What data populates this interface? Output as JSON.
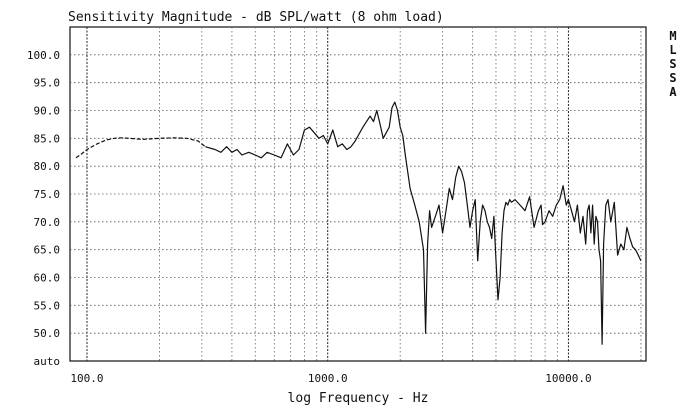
{
  "chart_data": {
    "type": "line",
    "title": "Sensitivity Magnitude - dB SPL/watt (8 ohm load)",
    "xlabel": "log Frequency - Hz",
    "ylabel": "",
    "x_scale": "log",
    "xlim": [
      85,
      21000
    ],
    "ylim": [
      45,
      105
    ],
    "x_ticks": [
      {
        "value": 100,
        "label": "100.0"
      },
      {
        "value": 1000,
        "label": "1000.0"
      },
      {
        "value": 10000,
        "label": "10000.0"
      }
    ],
    "y_ticks": [
      {
        "value": 100,
        "label": "100.0"
      },
      {
        "value": 95,
        "label": "95.0"
      },
      {
        "value": 90,
        "label": "90.0"
      },
      {
        "value": 85,
        "label": "85.0"
      },
      {
        "value": 80,
        "label": "80.0"
      },
      {
        "value": 75,
        "label": "75.0"
      },
      {
        "value": 70,
        "label": "70.0"
      },
      {
        "value": 65,
        "label": "65.0"
      },
      {
        "value": 60,
        "label": "60.0"
      },
      {
        "value": 55,
        "label": "55.0"
      },
      {
        "value": 50,
        "label": "50.0"
      },
      {
        "value": 45,
        "label": "auto"
      }
    ],
    "grid": true,
    "side_label": [
      "M",
      "L",
      "S",
      "S",
      "A"
    ],
    "series": [
      {
        "style": "dashed",
        "x": [
          90,
          95,
          100,
          110,
          120,
          130,
          140,
          150,
          170,
          200,
          230,
          260,
          290,
          310
        ],
        "y": [
          81.5,
          82.2,
          83,
          84,
          84.7,
          85,
          85.1,
          85,
          84.8,
          85,
          85.1,
          85,
          84.5,
          83.5
        ]
      },
      {
        "style": "solid",
        "x": [
          310,
          340,
          360,
          380,
          400,
          420,
          440,
          470,
          500,
          530,
          560,
          600,
          640,
          680,
          720,
          760,
          800,
          840,
          880,
          920,
          960,
          1000,
          1050,
          1100,
          1150,
          1200,
          1250,
          1300,
          1400,
          1500,
          1550,
          1600,
          1650,
          1700,
          1750,
          1800,
          1850,
          1900,
          1950,
          2000,
          2050,
          2100,
          2150,
          2200,
          2300,
          2400,
          2500,
          2550,
          2600,
          2650,
          2700,
          2800,
          2900,
          3000,
          3100,
          3200,
          3300,
          3400,
          3500,
          3600,
          3700,
          3800,
          3900,
          4000,
          4100,
          4200,
          4300,
          4400,
          4500,
          4600,
          4700,
          4800,
          4900,
          5000,
          5100,
          5200,
          5300,
          5400,
          5500,
          5600,
          5700,
          5800,
          6000,
          6300,
          6600,
          6900,
          7200,
          7500,
          7700,
          7800,
          8000,
          8300,
          8600,
          8900,
          9200,
          9500,
          9800,
          10000,
          10300,
          10600,
          10900,
          11200,
          11500,
          11800,
          12000,
          12200,
          12400,
          12600,
          12800,
          13000,
          13200,
          13400,
          13600,
          13800,
          14000,
          14300,
          14600,
          15000,
          15500,
          16000,
          16500,
          17000,
          17500,
          18000,
          18500,
          19000,
          19500,
          20000
        ],
        "y": [
          83.5,
          83,
          82.5,
          83.5,
          82.5,
          83,
          82,
          82.5,
          82,
          81.5,
          82.5,
          82,
          81.5,
          84,
          82,
          83,
          86.5,
          87,
          86,
          85,
          85.5,
          84,
          86.5,
          83.5,
          84,
          83,
          83.5,
          84.5,
          87,
          89,
          88,
          90,
          87.5,
          85,
          86,
          87,
          90.5,
          91.5,
          90,
          87,
          85.5,
          82,
          79,
          76,
          73,
          70,
          65,
          50,
          66,
          72,
          69,
          71,
          73,
          68,
          72,
          76,
          74,
          78,
          80,
          79,
          77,
          73,
          69,
          72,
          74,
          63,
          70,
          73,
          72,
          70,
          69,
          67,
          71,
          63,
          56,
          60,
          68,
          72,
          73.5,
          73,
          74,
          73.5,
          74,
          73,
          72,
          74.5,
          69,
          72,
          73,
          69.5,
          70,
          72,
          71,
          73,
          74,
          76.5,
          73,
          74,
          72,
          70,
          73,
          68,
          71,
          66,
          72,
          73,
          68,
          73,
          66,
          71,
          70,
          65,
          63,
          48,
          66,
          73,
          74,
          70,
          73.5,
          64,
          66,
          65,
          69,
          67,
          65.5,
          65,
          64,
          63
        ]
      }
    ]
  }
}
